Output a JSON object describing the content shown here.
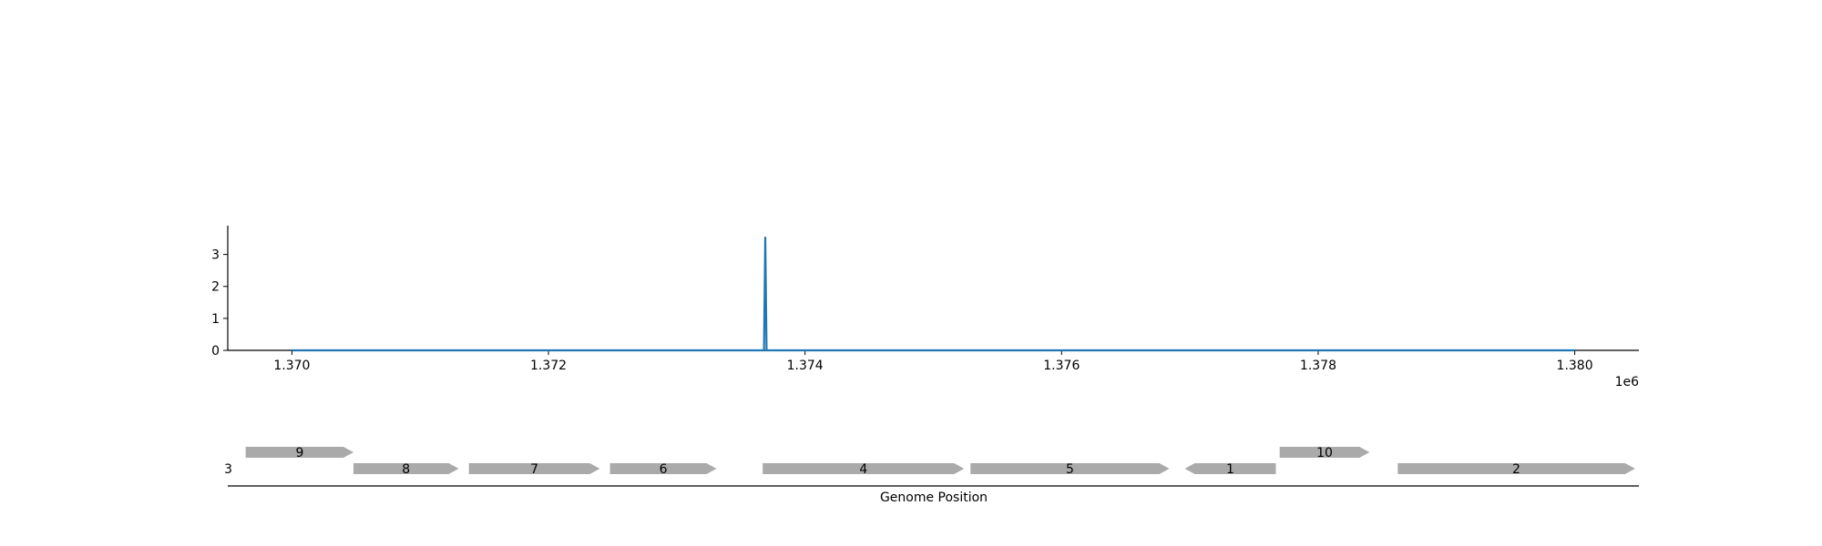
{
  "chart_data": [
    {
      "type": "line",
      "title": "",
      "xlabel": "",
      "ylabel": "",
      "x_offset_label": "1e6",
      "xlim": [
        1.3695,
        1.3805
      ],
      "ylim": [
        0,
        3.9
      ],
      "x_ticks": [
        1.37,
        1.372,
        1.374,
        1.376,
        1.378,
        1.38
      ],
      "x_tick_labels": [
        "1.370",
        "1.372",
        "1.374",
        "1.376",
        "1.378",
        "1.380"
      ],
      "y_ticks": [
        0,
        1,
        2,
        3
      ],
      "y_tick_labels": [
        "0",
        "1",
        "2",
        "3"
      ],
      "grid": false,
      "color": "#1f77b4",
      "series": [
        {
          "x": [
            1.37,
            1.37368,
            1.37369,
            1.3737,
            1.38
          ],
          "y": [
            0,
            0,
            3.55,
            0,
            0
          ]
        }
      ]
    },
    {
      "type": "gene_track",
      "xlabel": "Genome Position",
      "row_label": "3",
      "xlim": [
        1.3695,
        1.3805
      ],
      "color": "#aaaaaa",
      "genes": [
        {
          "label": "9",
          "start": 1.36964,
          "end": 1.37048,
          "strand": "+",
          "row": 1
        },
        {
          "label": "8",
          "start": 1.37048,
          "end": 1.3713,
          "strand": "+",
          "row": 0
        },
        {
          "label": "7",
          "start": 1.37138,
          "end": 1.3724,
          "strand": "+",
          "row": 0
        },
        {
          "label": "6",
          "start": 1.37248,
          "end": 1.37331,
          "strand": "+",
          "row": 0
        },
        {
          "label": "4",
          "start": 1.37367,
          "end": 1.37524,
          "strand": "+",
          "row": 0
        },
        {
          "label": "5",
          "start": 1.37529,
          "end": 1.37684,
          "strand": "+",
          "row": 0
        },
        {
          "label": "1",
          "start": 1.37696,
          "end": 1.37767,
          "strand": "-",
          "row": 0
        },
        {
          "label": "10",
          "start": 1.3777,
          "end": 1.3784,
          "strand": "+",
          "row": 1
        },
        {
          "label": "2",
          "start": 1.37862,
          "end": 1.38047,
          "strand": "+",
          "row": 0
        }
      ]
    }
  ]
}
